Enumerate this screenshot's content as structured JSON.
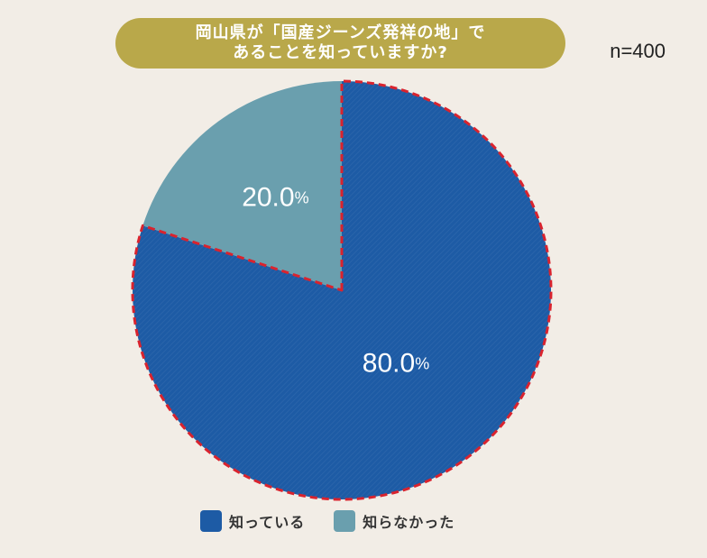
{
  "title": {
    "line1": "岡山県が「国産ジーンズ発祥の地」で",
    "line2": "あることを知っていますか?"
  },
  "sample_size": "n=400",
  "colors": {
    "background": "#f2ede6",
    "title_pill": "#b9a84a",
    "known": "#1d5ba5",
    "not_known": "#6a9fae",
    "highlight_dash": "#d9232e"
  },
  "chart_data": {
    "type": "pie",
    "title": "岡山県が「国産ジーンズ発祥の地」であることを知っていますか?",
    "n": 400,
    "slices": [
      {
        "label": "知っている",
        "value": 80.0,
        "display": "80.0%",
        "color": "#1d5ba5",
        "highlighted": true
      },
      {
        "label": "知らなかった",
        "value": 20.0,
        "display": "20.0%",
        "color": "#6a9fae",
        "highlighted": false
      }
    ],
    "start": "12 o'clock",
    "direction": "clockwise",
    "legend_position": "bottom"
  },
  "legend": {
    "items": [
      {
        "label": "知っている",
        "color": "#1d5ba5"
      },
      {
        "label": "知らなかった",
        "color": "#6a9fae"
      }
    ]
  }
}
